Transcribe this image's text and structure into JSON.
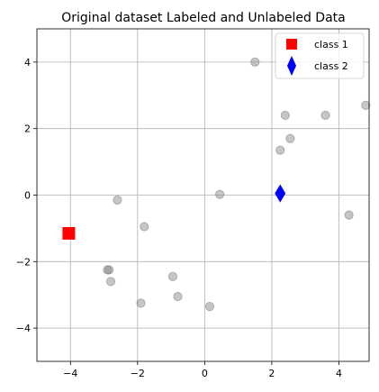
{
  "chart_data": {
    "type": "scatter",
    "title": "Original dataset Labeled and Unlabeled Data",
    "xlabel": "",
    "ylabel": "",
    "xlim": [
      -5,
      4.9
    ],
    "ylim": [
      -5,
      5
    ],
    "xticks": [
      -4,
      -2,
      0,
      2,
      4
    ],
    "yticks": [
      -4,
      -2,
      0,
      2,
      4
    ],
    "xtick_labels": [
      "−4",
      "−2",
      "0",
      "2",
      "4"
    ],
    "ytick_labels": [
      "−4",
      "−2",
      "0",
      "2",
      "4"
    ],
    "grid": true,
    "legend_position": "top-right",
    "series": [
      {
        "marker": "circle",
        "color": "#808080",
        "points": [
          {
            "x": 1.5,
            "y": 4.0
          },
          {
            "x": 2.4,
            "y": 2.4
          },
          {
            "x": 3.6,
            "y": 2.4
          },
          {
            "x": 4.8,
            "y": 2.7
          },
          {
            "x": 2.55,
            "y": 1.7
          },
          {
            "x": 2.25,
            "y": 1.35
          },
          {
            "x": 0.45,
            "y": 0.02
          },
          {
            "x": 4.3,
            "y": -0.6
          },
          {
            "x": -2.6,
            "y": -0.15
          },
          {
            "x": -1.8,
            "y": -0.95
          },
          {
            "x": -2.9,
            "y": -2.25
          },
          {
            "x": -2.85,
            "y": -2.25
          },
          {
            "x": -2.8,
            "y": -2.6
          },
          {
            "x": -0.95,
            "y": -2.45
          },
          {
            "x": -0.8,
            "y": -3.05
          },
          {
            "x": -1.9,
            "y": -3.25
          },
          {
            "x": 0.15,
            "y": -3.35
          }
        ]
      },
      {
        "name": "class 1",
        "marker": "square",
        "color": "#ff0000",
        "points": [
          {
            "x": -4.05,
            "y": -1.15
          }
        ]
      },
      {
        "name": "class 2",
        "marker": "diamond",
        "color": "#0000ff",
        "points": [
          {
            "x": 2.25,
            "y": 0.05
          }
        ]
      }
    ]
  }
}
